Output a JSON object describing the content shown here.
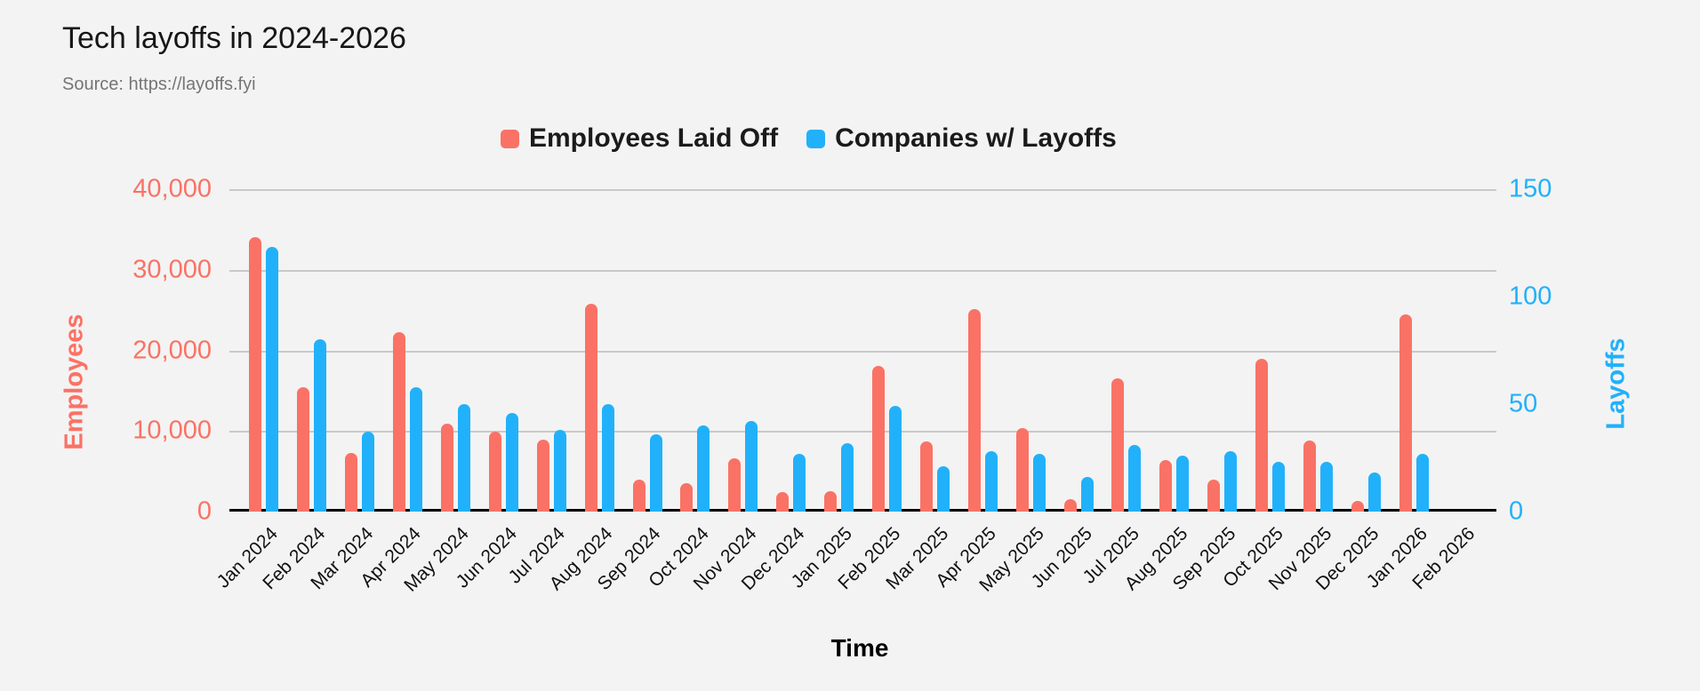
{
  "title": "Tech layoffs in 2024-2026",
  "source": "Source: https://layoffs.fyi",
  "colors": {
    "background": "#F3F3F3",
    "gridline": "#C9C9C9",
    "axis_line": "#000000",
    "employees_red": "#FA7265",
    "companies_blue": "#21B1FA"
  },
  "chart_data": {
    "type": "bar",
    "title": "Tech layoffs in 2024-2026",
    "source": "Source: https://layoffs.fyi",
    "xlabel": "Time",
    "grid": true,
    "legend_position": "top",
    "categories": [
      "Jan 2024",
      "Feb 2024",
      "Mar 2024",
      "Apr 2024",
      "May 2024",
      "Jun 2024",
      "Jul 2024",
      "Aug 2024",
      "Sep 2024",
      "Oct 2024",
      "Nov 2024",
      "Dec 2024",
      "Jan 2025",
      "Feb 2025",
      "Mar 2025",
      "Apr 2025",
      "May 2025",
      "Jun 2025",
      "Jul 2025",
      "Aug 2025",
      "Sep 2025",
      "Oct 2025",
      "Nov 2025",
      "Dec 2025",
      "Jan 2026",
      "Feb 2026"
    ],
    "series": [
      {
        "name": "Employees Laid Off",
        "axis": "left",
        "color": "#FA7265",
        "values": [
          34000,
          15400,
          7300,
          22300,
          10900,
          9900,
          8900,
          25800,
          4000,
          3500,
          6600,
          2400,
          2500,
          18100,
          8700,
          25100,
          10400,
          1500,
          16500,
          6400,
          4000,
          19000,
          8800,
          1300,
          24500,
          0
        ]
      },
      {
        "name": "Companies w/ Layoffs",
        "axis": "right",
        "color": "#21B1FA",
        "values": [
          123,
          80,
          37,
          58,
          50,
          46,
          38,
          50,
          36,
          40,
          42,
          27,
          32,
          49,
          21,
          28,
          27,
          16,
          31,
          26,
          28,
          23,
          23,
          18,
          27,
          0
        ]
      }
    ],
    "left_axis": {
      "label": "Employees",
      "max": 40000,
      "min": 0,
      "color": "#FA7265",
      "ticks": [
        "40,000",
        "30,000",
        "20,000",
        "10,000",
        "0"
      ]
    },
    "right_axis": {
      "label": "Layoffs",
      "max": 150,
      "min": 0,
      "color": "#21B1FA",
      "ticks": [
        "150",
        "100",
        "50",
        "0"
      ]
    }
  }
}
